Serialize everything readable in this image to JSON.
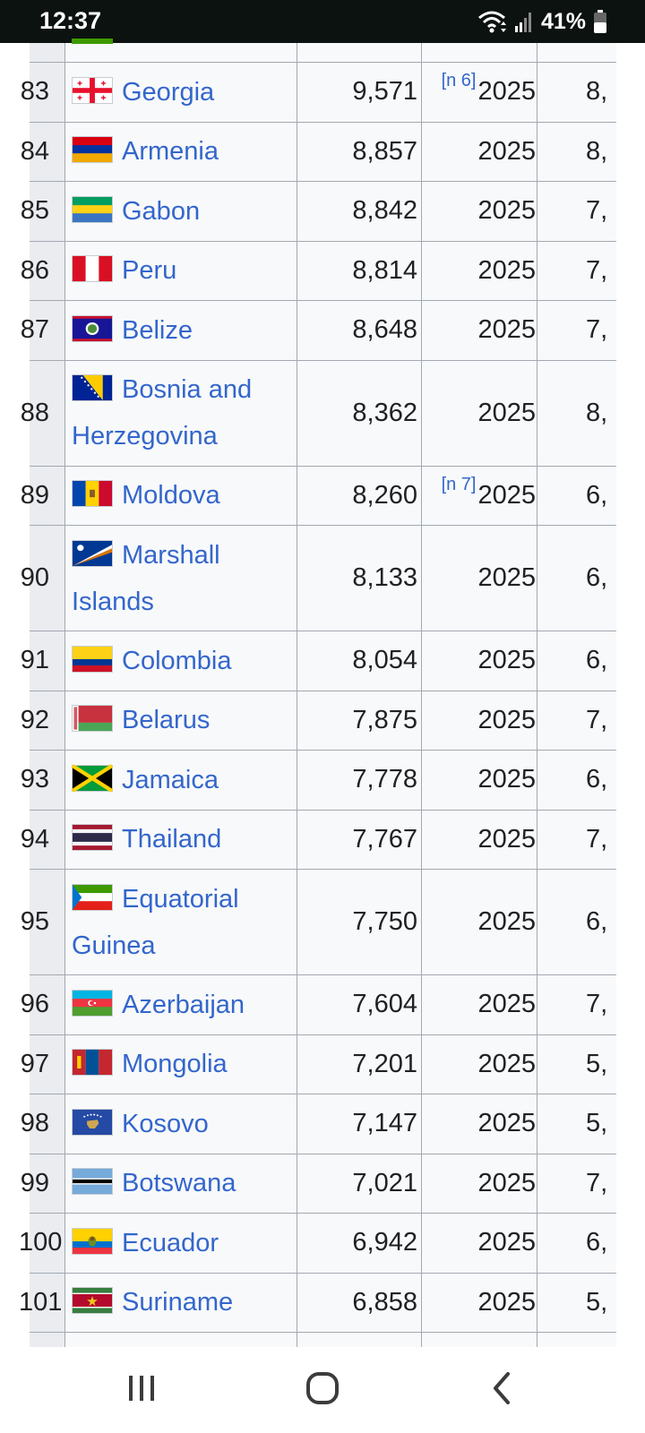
{
  "status": {
    "time": "12:37",
    "battery_pct": "41%",
    "icons": [
      "wifi-icon",
      "signal-icon",
      "battery-icon"
    ]
  },
  "table": {
    "rows": [
      {
        "rank": "83",
        "country": "Georgia",
        "flag": "georgia-flag",
        "gdp": "9,571",
        "note": "[n 6]",
        "year": "2025",
        "extra": "8,"
      },
      {
        "rank": "84",
        "country": "Armenia",
        "flag": "armenia-flag",
        "gdp": "8,857",
        "note": "",
        "year": "2025",
        "extra": "8,"
      },
      {
        "rank": "85",
        "country": "Gabon",
        "flag": "gabon-flag",
        "gdp": "8,842",
        "note": "",
        "year": "2025",
        "extra": "7,"
      },
      {
        "rank": "86",
        "country": "Peru",
        "flag": "peru-flag",
        "gdp": "8,814",
        "note": "",
        "year": "2025",
        "extra": "7,"
      },
      {
        "rank": "87",
        "country": "Belize",
        "flag": "belize-flag",
        "gdp": "8,648",
        "note": "",
        "year": "2025",
        "extra": "7,"
      },
      {
        "rank": "88",
        "country": "Bosnia and Herzegovina",
        "flag": "bosnia-flag",
        "gdp": "8,362",
        "note": "",
        "year": "2025",
        "extra": "8,"
      },
      {
        "rank": "89",
        "country": "Moldova",
        "flag": "moldova-flag",
        "gdp": "8,260",
        "note": "[n 7]",
        "year": "2025",
        "extra": "6,"
      },
      {
        "rank": "90",
        "country": "Marshall Islands",
        "flag": "marshall-islands-flag",
        "gdp": "8,133",
        "note": "",
        "year": "2025",
        "extra": "6,"
      },
      {
        "rank": "91",
        "country": "Colombia",
        "flag": "colombia-flag",
        "gdp": "8,054",
        "note": "",
        "year": "2025",
        "extra": "6,"
      },
      {
        "rank": "92",
        "country": "Belarus",
        "flag": "belarus-flag",
        "gdp": "7,875",
        "note": "",
        "year": "2025",
        "extra": "7,"
      },
      {
        "rank": "93",
        "country": "Jamaica",
        "flag": "jamaica-flag",
        "gdp": "7,778",
        "note": "",
        "year": "2025",
        "extra": "6,"
      },
      {
        "rank": "94",
        "country": "Thailand",
        "flag": "thailand-flag",
        "gdp": "7,767",
        "note": "",
        "year": "2025",
        "extra": "7,"
      },
      {
        "rank": "95",
        "country": "Equatorial Guinea",
        "flag": "equatorial-guinea-flag",
        "gdp": "7,750",
        "note": "",
        "year": "2025",
        "extra": "6,"
      },
      {
        "rank": "96",
        "country": "Azerbaijan",
        "flag": "azerbaijan-flag",
        "gdp": "7,604",
        "note": "",
        "year": "2025",
        "extra": "7,"
      },
      {
        "rank": "97",
        "country": "Mongolia",
        "flag": "mongolia-flag",
        "gdp": "7,201",
        "note": "",
        "year": "2025",
        "extra": "5,"
      },
      {
        "rank": "98",
        "country": "Kosovo",
        "flag": "kosovo-flag",
        "gdp": "7,147",
        "note": "",
        "year": "2025",
        "extra": "5,"
      },
      {
        "rank": "99",
        "country": "Botswana",
        "flag": "botswana-flag",
        "gdp": "7,021",
        "note": "",
        "year": "2025",
        "extra": "7,"
      },
      {
        "rank": "100",
        "country": "Ecuador",
        "flag": "ecuador-flag",
        "gdp": "6,942",
        "note": "",
        "year": "2025",
        "extra": "6,"
      },
      {
        "rank": "101",
        "country": "Suriname",
        "flag": "suriname-flag",
        "gdp": "6,858",
        "note": "",
        "year": "2025",
        "extra": "5,"
      }
    ]
  },
  "navbar": {
    "icons": [
      "recent-apps-icon",
      "home-icon",
      "back-icon"
    ]
  },
  "colors": {
    "link": "#3366cc",
    "text": "#202122",
    "border": "#a2a9b1",
    "table_bg": "#f8f9fa",
    "rank_bg": "#eaecf0",
    "statusbar_bg": "#0c1210"
  }
}
